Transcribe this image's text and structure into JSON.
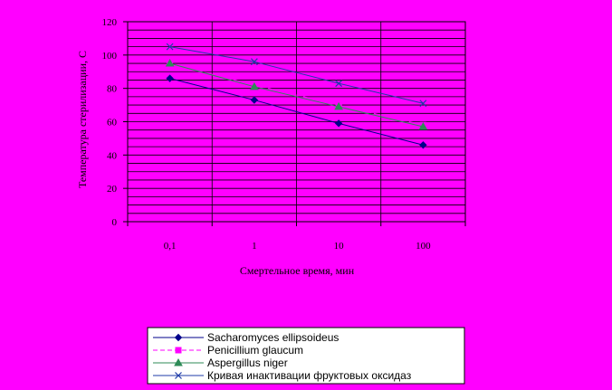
{
  "colors": {
    "page_background": "#FF00FF",
    "grid": "#000000",
    "axes": "#000000",
    "legend_background": "#FFFFFF"
  },
  "chart_data": {
    "type": "line",
    "title": "",
    "xlabel": "Смертельное время, мин",
    "ylabel": "Температура стерилизации, С",
    "x_scale": "log",
    "x_categories": [
      "0,1",
      "1",
      "10",
      "100"
    ],
    "x": [
      0.1,
      1,
      10,
      100
    ],
    "y_ticks": [
      "0",
      "20",
      "40",
      "60",
      "80",
      "100",
      "120"
    ],
    "ylim": [
      0,
      120
    ],
    "y_gridline_step": 5,
    "grid": true,
    "legend_position": "bottom",
    "series": [
      {
        "name": "Sacharomyces ellipsoideus",
        "values": [
          86,
          73,
          59,
          46
        ],
        "color": "#00008B",
        "marker": "diamond",
        "line": "solid"
      },
      {
        "name": "Penicillium glaucum",
        "values": [
          95,
          82,
          70,
          58
        ],
        "color": "#FF00FF",
        "marker": "square",
        "line": "dashed"
      },
      {
        "name": "Aspergillus niger",
        "values": [
          95,
          81,
          69,
          57
        ],
        "color": "#2E8B57",
        "marker": "triangle",
        "line": "solid"
      },
      {
        "name": "Кривая инактивации фруктовых оксидаз",
        "values": [
          105,
          96,
          83,
          71
        ],
        "color": "#1F3BA8",
        "marker": "x",
        "line": "solid"
      }
    ]
  }
}
